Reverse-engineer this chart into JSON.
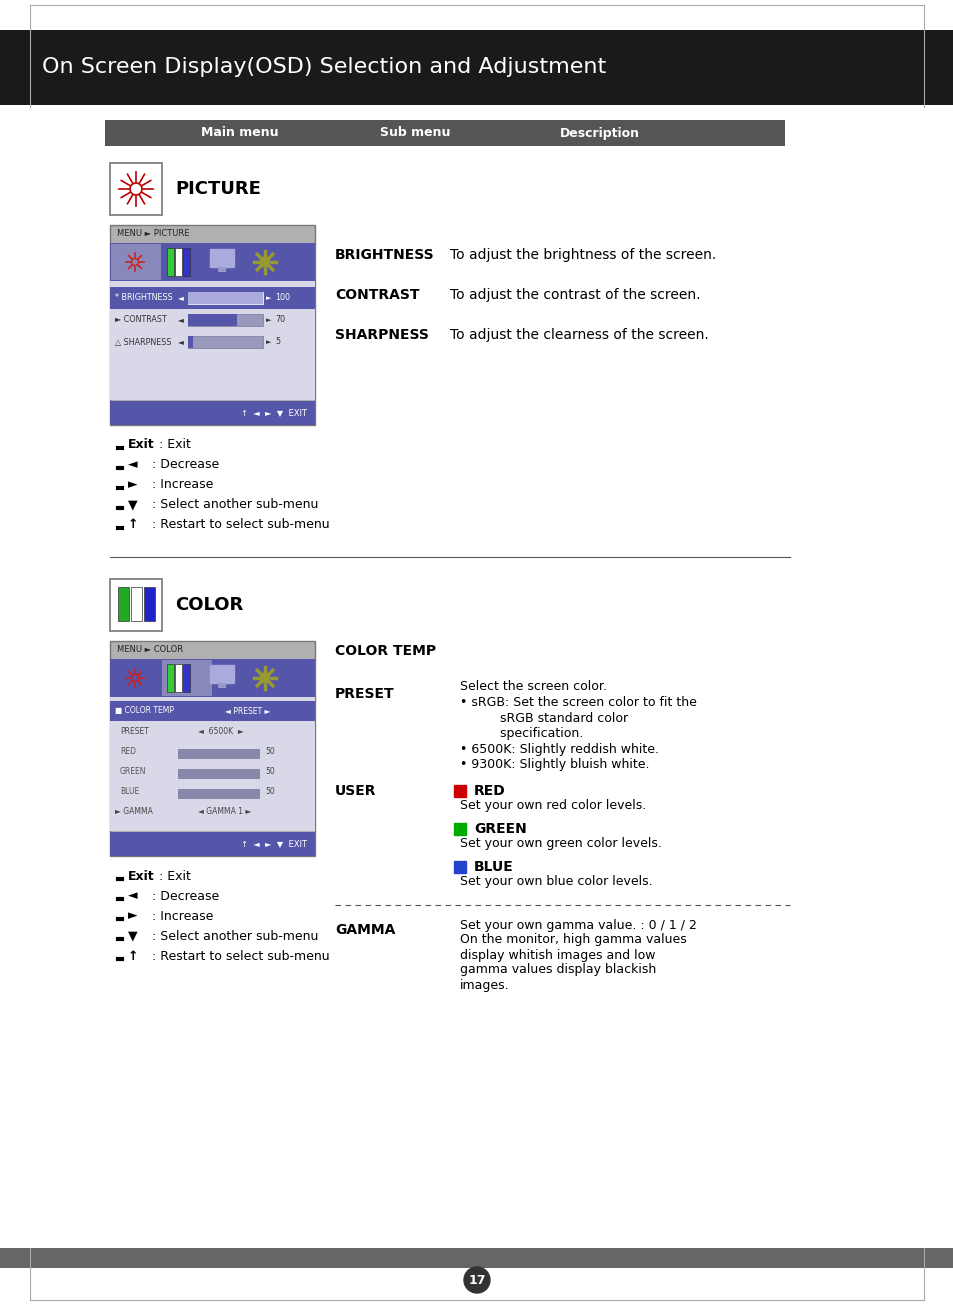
{
  "title": "On Screen Display(OSD) Selection and Adjustment",
  "title_bg": "#1a1a1a",
  "title_color": "#ffffff",
  "header_bg": "#555555",
  "header_color": "#ffffff",
  "page_bg": "#ffffff",
  "page_number": "17",
  "picture_section": {
    "icon_label": "PICTURE",
    "sub_items": [
      "BRIGHTNESS",
      "CONTRAST",
      "SHARPNESS"
    ],
    "descriptions": [
      "To adjust the brightness of the screen.",
      "To adjust the contrast of the screen.",
      "To adjust the clearness of the screen."
    ],
    "osd_title": "MENU ► PICTURE",
    "osd_items": [
      "BRIGHTNESS",
      "CONTRAST",
      "SHARPNESS"
    ],
    "osd_values": [
      "100",
      "70",
      "5"
    ],
    "notes": [
      "Exit : Exit",
      "◄ : Decrease",
      "► : Increase",
      "▼ : Select another sub-menu",
      "↑ : Restart to select sub-menu"
    ]
  },
  "color_section": {
    "icon_label": "COLOR",
    "sub_heading": "COLOR TEMP",
    "preset_desc": [
      "Select the screen color.",
      "• sRGB: Set the screen color to fit the",
      "          sRGB standard color",
      "          specification.",
      "• 6500K: Slightly reddish white.",
      "• 9300K: Slightly bluish white."
    ],
    "gamma_desc": [
      "Set your own gamma value. : 0 / 1 / 2",
      "On the monitor, high gamma values",
      "display whitish images and low",
      "gamma values display blackish",
      "images."
    ],
    "osd_title": "MENU ► COLOR",
    "notes": [
      "Exit : Exit",
      "◄ : Decrease",
      "► : Increase",
      "▼ : Select another sub-menu",
      "↑ : Restart to select sub-menu"
    ]
  }
}
